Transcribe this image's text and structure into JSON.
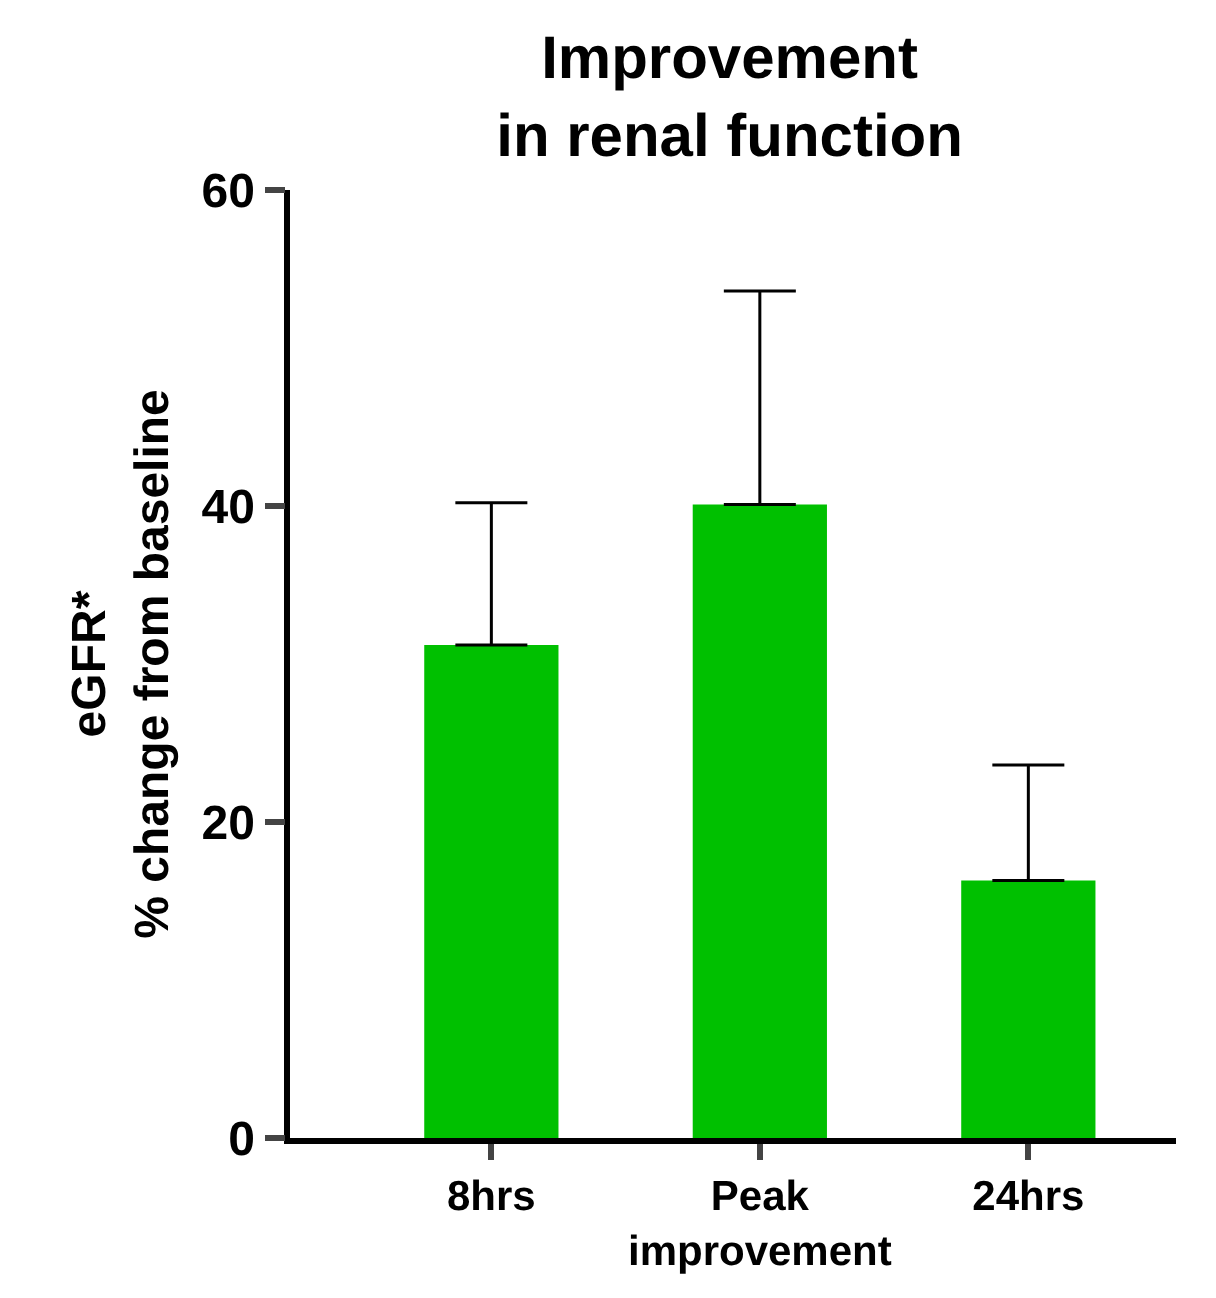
{
  "chart_data": {
    "type": "bar",
    "title": "Improvement\nin renal function",
    "ylabel": "eGFR*\n% change from baseline",
    "categories": [
      "8hrs",
      "Peak improvement",
      "24hrs"
    ],
    "values": [
      31.2,
      40.1,
      16.3
    ],
    "errors": [
      [
        31.2,
        40.2
      ],
      [
        40.1,
        53.6
      ],
      [
        16.3,
        23.6
      ]
    ],
    "color": "#00c000",
    "ylim": [
      0,
      60
    ],
    "yticks": [
      0,
      20,
      40,
      60
    ]
  }
}
